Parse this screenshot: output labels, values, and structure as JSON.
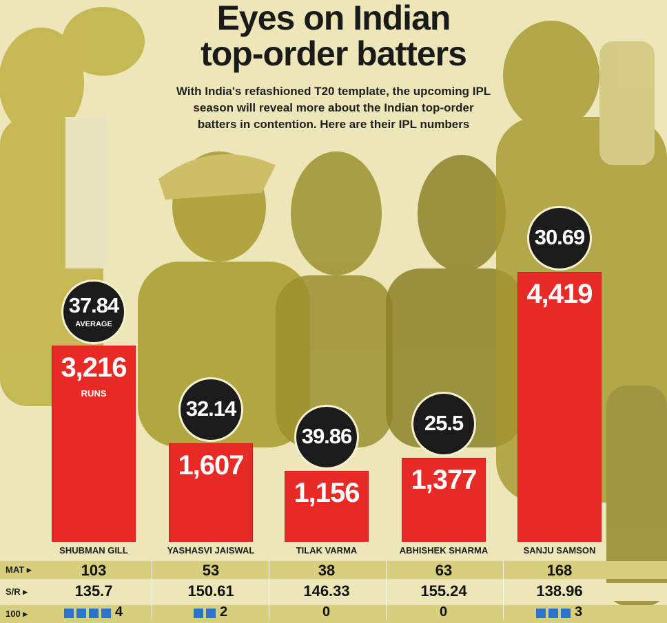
{
  "headline": {
    "line1": "Eyes on Indian",
    "line2": "top-order batters"
  },
  "subhead": {
    "line1": "With India's refashioned T20 template, the upcoming IPL",
    "line2": "season will reveal more about the Indian top-order",
    "line3": "batters in contention. Here are their IPL numbers"
  },
  "colors": {
    "background": "#ece6b8",
    "bar": "#e82a27",
    "circle": "#1b1b1b",
    "century_marker": "#2a74c9",
    "photo_tint": "#b8a934"
  },
  "icons": {
    "row_pointer": "right-triangle-icon",
    "century_marker": "blue-square-icon"
  },
  "labels": {
    "runs": "RUNS",
    "average": "AVERAGE",
    "mat": "MAT",
    "sr": "S/R",
    "hundreds": "100"
  },
  "chart_data": {
    "type": "bar",
    "title": "Eyes on Indian top-order batters",
    "categories": [
      "SHUBMAN GILL",
      "YASHASVI JAISWAL",
      "TILAK VARMA",
      "ABHISHEK SHARMA",
      "SANJU SAMSON"
    ],
    "series": [
      {
        "name": "RUNS",
        "values": [
          3216,
          1607,
          1156,
          1377,
          4419
        ],
        "labels": [
          "3,216",
          "1,607",
          "1,156",
          "1,377",
          "4,419"
        ]
      },
      {
        "name": "AVERAGE",
        "values": [
          37.84,
          32.14,
          39.86,
          25.5,
          30.69
        ],
        "labels": [
          "37.84",
          "32.14",
          "39.86",
          "25.5",
          "30.69"
        ]
      }
    ],
    "table": {
      "MAT": [
        "103",
        "53",
        "38",
        "63",
        "168"
      ],
      "S/R": [
        "135.7",
        "150.61",
        "146.33",
        "155.24",
        "138.96"
      ],
      "100": [
        "4",
        "2",
        "0",
        "0",
        "3"
      ]
    },
    "ylim": [
      0,
      4419
    ]
  }
}
